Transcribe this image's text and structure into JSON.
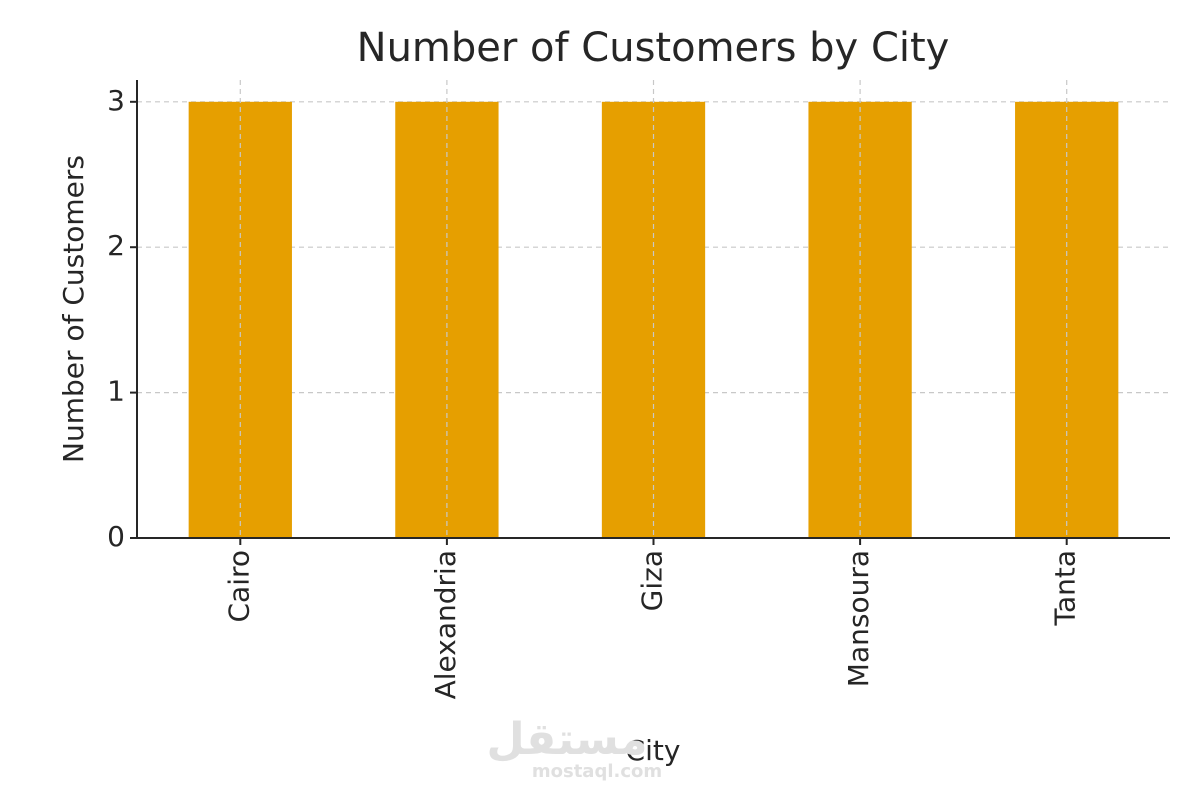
{
  "chart_data": {
    "type": "bar",
    "title": "Number of Customers by City",
    "x_label": "City",
    "y_label": "Number of Customers",
    "categories": [
      "Cairo",
      "Alexandria",
      "Giza",
      "Mansoura",
      "Tanta"
    ],
    "values": [
      3,
      3,
      3,
      3,
      3
    ],
    "color": "#e69f00",
    "ylim": [
      0,
      3.15
    ],
    "yticks": [
      0,
      1,
      2,
      3
    ],
    "grid": true
  },
  "watermark": {
    "arabic": "مستقل",
    "latin": "mostaql.com"
  }
}
